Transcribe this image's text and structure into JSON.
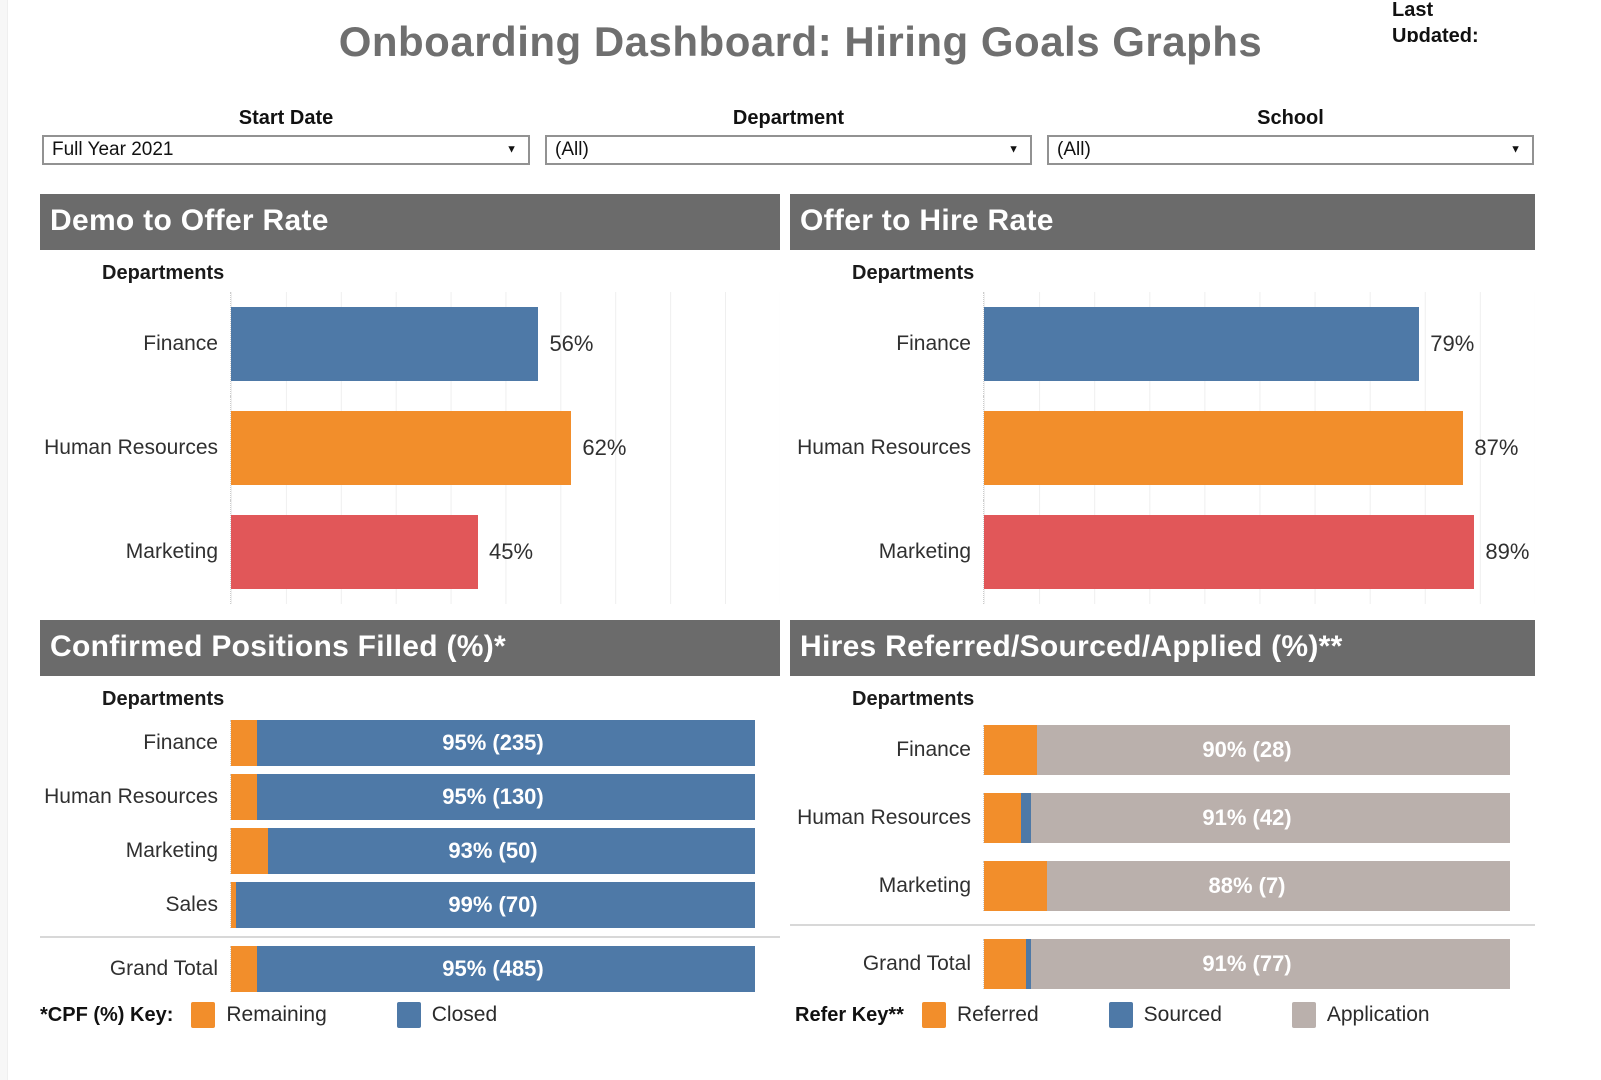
{
  "page": {
    "title": "Onboarding Dashboard: Hiring Goals Graphs",
    "last_updated_label": "Last Updated:"
  },
  "icons": {
    "dropdown_caret": "▼"
  },
  "filters": [
    {
      "label": "Start Date",
      "value": "Full Year 2021"
    },
    {
      "label": "Department",
      "value": "(All)"
    },
    {
      "label": "School",
      "value": "(All)"
    }
  ],
  "colors": {
    "blue": "#4e79a7",
    "orange": "#f28e2b",
    "red": "#e15759",
    "gray": "#bab0ac",
    "header_bg": "#6b6b6b",
    "title_text": "#6f6f6f"
  },
  "chart_data": [
    {
      "type": "bar",
      "title": "Demo to Offer Rate",
      "axis_label": "Departments",
      "categories": [
        "Finance",
        "Human Resources",
        "Marketing"
      ],
      "values": [
        56,
        62,
        45
      ],
      "value_labels": [
        "56%",
        "62%",
        "45%"
      ],
      "bar_colors": [
        "#4e79a7",
        "#f28e2b",
        "#e15759"
      ],
      "xlim": [
        0,
        100
      ],
      "grid": true,
      "legend_position": "none"
    },
    {
      "type": "bar",
      "title": "Offer to Hire Rate",
      "axis_label": "Departments",
      "categories": [
        "Finance",
        "Human Resources",
        "Marketing"
      ],
      "values": [
        79,
        87,
        89
      ],
      "value_labels": [
        "79%",
        "87%",
        "89%"
      ],
      "bar_colors": [
        "#4e79a7",
        "#f28e2b",
        "#e15759"
      ],
      "xlim": [
        0,
        100
      ],
      "grid": true,
      "legend_position": "none"
    },
    {
      "type": "stacked-bar",
      "title": "Confirmed Positions Filled (%)*",
      "axis_label": "Departments",
      "categories": [
        "Finance",
        "Human Resources",
        "Marketing",
        "Sales",
        "Grand Total"
      ],
      "series": [
        {
          "name": "Remaining",
          "color": "#f28e2b",
          "values": [
            5,
            5,
            7,
            1,
            5
          ]
        },
        {
          "name": "Closed",
          "color": "#4e79a7",
          "values": [
            95,
            95,
            93,
            99,
            95
          ]
        }
      ],
      "bar_labels": [
        "95% (235)",
        "95% (130)",
        "93% (50)",
        "99% (70)",
        "95% (485)"
      ],
      "separator_before": "Grand Total",
      "xlim": [
        0,
        100
      ],
      "grid": true,
      "legend_label": "*CPF (%) Key:",
      "legend_position": "bottom"
    },
    {
      "type": "stacked-bar",
      "title": "Hires Referred/Sourced/Applied (%)**",
      "axis_label": "Departments",
      "categories": [
        "Finance",
        "Human Resources",
        "Marketing",
        "Grand Total"
      ],
      "series": [
        {
          "name": "Referred",
          "color": "#f28e2b",
          "values": [
            10,
            7,
            12,
            8
          ]
        },
        {
          "name": "Sourced",
          "color": "#4e79a7",
          "values": [
            0,
            2,
            0,
            1
          ]
        },
        {
          "name": "Application",
          "color": "#bab0ac",
          "values": [
            90,
            91,
            88,
            91
          ]
        }
      ],
      "bar_labels": [
        "90% (28)",
        "91% (42)",
        "88% (7)",
        "91% (77)"
      ],
      "separator_before": "Grand Total",
      "xlim": [
        0,
        100
      ],
      "grid": true,
      "legend_label": "Refer Key**",
      "legend_position": "bottom"
    }
  ]
}
